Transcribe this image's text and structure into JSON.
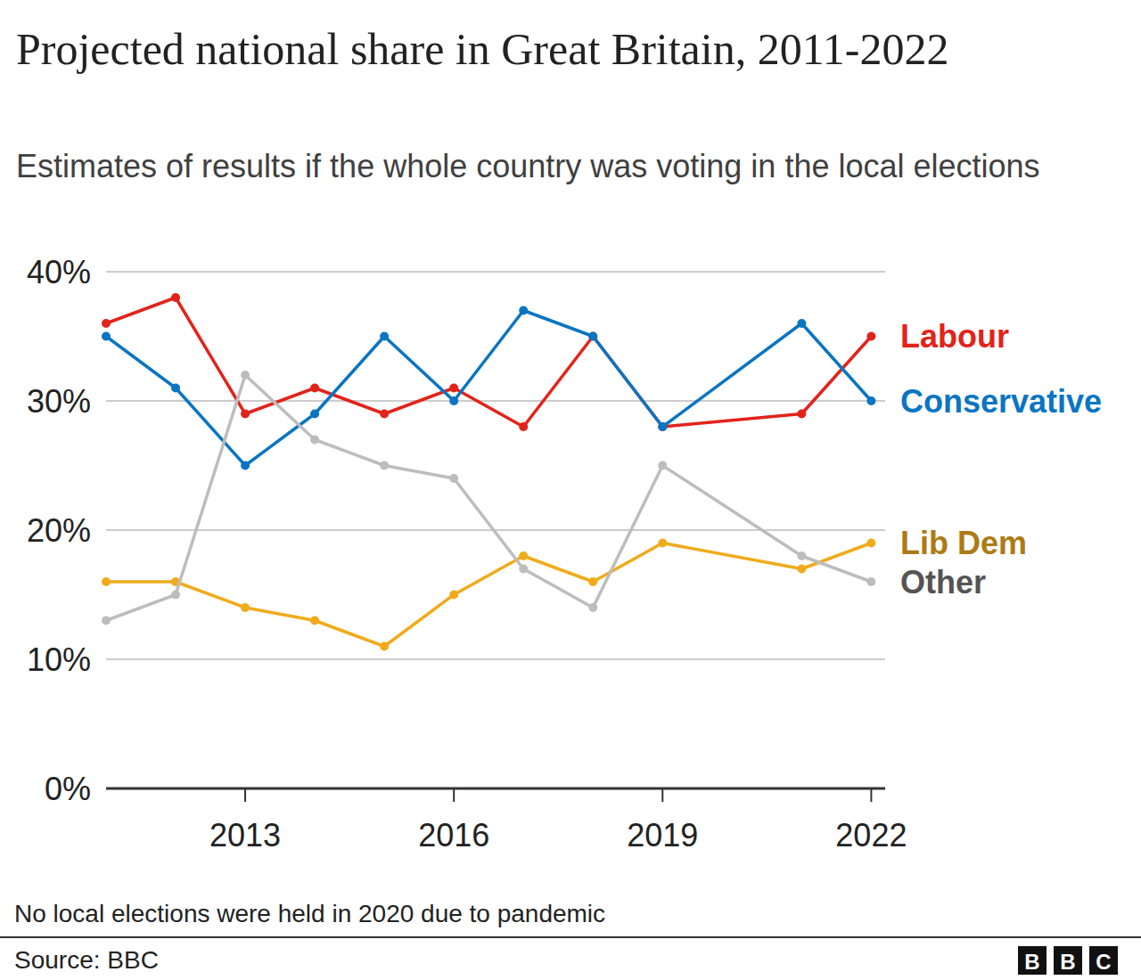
{
  "chart_data": {
    "type": "line",
    "title": "Projected national share in Great Britain, 2011-2022",
    "subtitle": "Estimates of results if the whole country was voting in the local elections",
    "note": "No local elections were held in 2020 due to pandemic",
    "source": "Source: BBC",
    "logo": "BBC",
    "x": [
      2011,
      2012,
      2013,
      2014,
      2015,
      2016,
      2017,
      2018,
      2019,
      2021,
      2022
    ],
    "xlim": [
      2011,
      2022.2
    ],
    "xticks": [
      2013,
      2016,
      2019,
      2022
    ],
    "ylim": [
      0,
      40
    ],
    "yticks": [
      {
        "value": 0,
        "label": "0%"
      },
      {
        "value": 10,
        "label": "10%"
      },
      {
        "value": 20,
        "label": "20%"
      },
      {
        "value": 30,
        "label": "30%"
      },
      {
        "value": 40,
        "label": "40%"
      }
    ],
    "grid": true,
    "marker": "circle",
    "series": [
      {
        "name": "Labour",
        "color": "#e2231a",
        "values": [
          36,
          38,
          29,
          31,
          29,
          31,
          28,
          35,
          28,
          29,
          35
        ]
      },
      {
        "name": "Conservative",
        "color": "#0a75c2",
        "values": [
          35,
          31,
          25,
          29,
          35,
          30,
          37,
          35,
          28,
          36,
          30
        ]
      },
      {
        "name": "Lib Dem",
        "color": "#f0ab1c",
        "values": [
          16,
          16,
          14,
          13,
          11,
          15,
          18,
          16,
          19,
          17,
          19
        ]
      },
      {
        "name": "Other",
        "color": "#bdbdbd",
        "values": [
          13,
          15,
          32,
          27,
          25,
          24,
          17,
          14,
          25,
          18,
          16
        ]
      }
    ]
  }
}
